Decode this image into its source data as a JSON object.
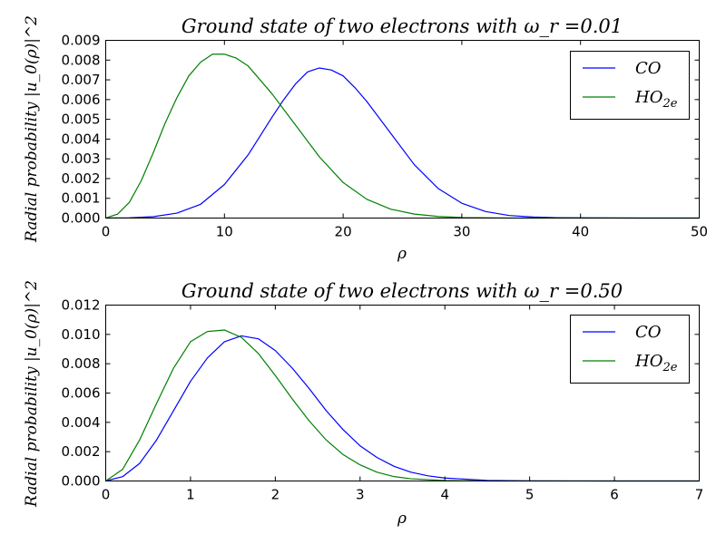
{
  "figure": {
    "background": "#ffffff"
  },
  "chart_data": [
    {
      "type": "line",
      "title": "Ground state of two electrons with ω_r =0.01",
      "xlabel": "ρ",
      "ylabel": "Radial probability |u_0(ρ)|^2",
      "xlim": [
        0,
        50
      ],
      "ylim": [
        0,
        0.009
      ],
      "xticks": [
        "0",
        "10",
        "20",
        "30",
        "40",
        "50"
      ],
      "yticks": [
        "0.000",
        "0.001",
        "0.002",
        "0.003",
        "0.004",
        "0.005",
        "0.006",
        "0.007",
        "0.008",
        "0.009"
      ],
      "legend_position": "top-right",
      "grid": false,
      "series": [
        {
          "name": "CO",
          "color": "#0000ff",
          "x": [
            0,
            2,
            4,
            6,
            8,
            10,
            12,
            14,
            15,
            16,
            17,
            18,
            19,
            20,
            21,
            22,
            24,
            26,
            28,
            30,
            32,
            34,
            36,
            38,
            40,
            45,
            50
          ],
          "y": [
            0,
            1e-05,
            7e-05,
            0.00025,
            0.0007,
            0.0017,
            0.0032,
            0.0051,
            0.006,
            0.0068,
            0.0074,
            0.0076,
            0.0075,
            0.0072,
            0.0066,
            0.0059,
            0.0043,
            0.0027,
            0.0015,
            0.00075,
            0.00033,
            0.00013,
            5e-05,
            2e-05,
            1e-05,
            0,
            0
          ]
        },
        {
          "name": "HO_2e",
          "color": "#008000",
          "x": [
            0,
            1,
            2,
            3,
            4,
            5,
            6,
            7,
            8,
            9,
            10,
            11,
            12,
            13,
            14,
            15,
            16,
            18,
            20,
            22,
            24,
            26,
            28,
            30,
            32,
            34,
            36,
            40,
            45,
            50
          ],
          "y": [
            0,
            0.0002,
            0.0008,
            0.0019,
            0.0033,
            0.0048,
            0.0061,
            0.0072,
            0.0079,
            0.0083,
            0.0083,
            0.0081,
            0.0077,
            0.007,
            0.0063,
            0.0055,
            0.0047,
            0.0031,
            0.0018,
            0.00095,
            0.00045,
            0.0002,
            8e-05,
            3e-05,
            1e-05,
            0,
            0,
            0,
            0,
            0
          ]
        }
      ]
    },
    {
      "type": "line",
      "title": "Ground state of two electrons with ω_r =0.50",
      "xlabel": "ρ",
      "ylabel": "Radial probability |u_0(ρ)|^2",
      "xlim": [
        0,
        7
      ],
      "ylim": [
        0,
        0.012
      ],
      "xticks": [
        "0",
        "1",
        "2",
        "3",
        "4",
        "5",
        "6",
        "7"
      ],
      "yticks": [
        "0.000",
        "0.002",
        "0.004",
        "0.006",
        "0.008",
        "0.010",
        "0.012"
      ],
      "legend_position": "top-right",
      "grid": false,
      "series": [
        {
          "name": "CO",
          "color": "#0000ff",
          "x": [
            0,
            0.2,
            0.4,
            0.6,
            0.8,
            1.0,
            1.2,
            1.4,
            1.6,
            1.8,
            2.0,
            2.2,
            2.4,
            2.6,
            2.8,
            3.0,
            3.2,
            3.4,
            3.6,
            3.8,
            4.0,
            4.5,
            5.0,
            6.0,
            7.0
          ],
          "y": [
            0,
            0.0003,
            0.0012,
            0.0028,
            0.0048,
            0.0068,
            0.0084,
            0.0095,
            0.0099,
            0.0097,
            0.0089,
            0.0077,
            0.0063,
            0.0048,
            0.0035,
            0.0024,
            0.0016,
            0.001,
            0.0006,
            0.00035,
            0.0002,
            4e-05,
            1e-05,
            0,
            0
          ]
        },
        {
          "name": "HO_2e",
          "color": "#008000",
          "x": [
            0,
            0.2,
            0.4,
            0.6,
            0.8,
            1.0,
            1.2,
            1.4,
            1.6,
            1.8,
            2.0,
            2.2,
            2.4,
            2.6,
            2.8,
            3.0,
            3.2,
            3.4,
            3.6,
            4.0,
            4.5,
            5.0,
            6.0,
            7.0
          ],
          "y": [
            0,
            0.0008,
            0.0028,
            0.0053,
            0.0077,
            0.0095,
            0.0102,
            0.0103,
            0.0098,
            0.0087,
            0.0072,
            0.0056,
            0.0041,
            0.0028,
            0.0018,
            0.0011,
            0.0006,
            0.0003,
            0.00015,
            3e-05,
            0,
            0,
            0,
            0
          ]
        }
      ]
    }
  ]
}
